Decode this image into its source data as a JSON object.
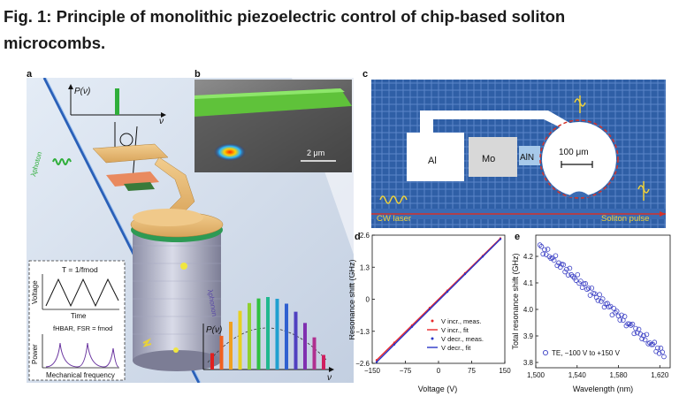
{
  "figure": {
    "title": "Fig. 1: Principle of monolithic piezoelectric control of chip-based soliton microcombs."
  },
  "panel_labels": {
    "a": "a",
    "b": "b",
    "c": "c",
    "d": "d",
    "e": "e"
  },
  "panel_a": {
    "top_plot_ylabel": "P(ν)",
    "top_plot_xlabel": "ν",
    "photon_label": "λphoton",
    "phonon_label": "λphonon",
    "comb_plot_ylabel": "P(ν)",
    "comb_plot_xlabel": "ν",
    "inset_period": "T = 1/fmod",
    "inset_voltage": "Voltage",
    "inset_time": "Time",
    "inset_fsr": "fHBAR, FSR = fmod",
    "inset_power": "Power",
    "inset_mech": "Mechanical frequency"
  },
  "panel_b": {
    "scalebar": "2 μm"
  },
  "panel_c": {
    "al": "Al",
    "mo": "Mo",
    "aln": "AlN",
    "scalebar": "100 μm",
    "cw": "CW laser",
    "soliton": "Soliton pulse"
  },
  "chart_data": [
    {
      "type": "line",
      "panel": "d",
      "xlabel": "Voltage (V)",
      "ylabel": "Resonance shift (GHz)",
      "xlim": [
        -150,
        150
      ],
      "ylim": [
        -2.6,
        2.6
      ],
      "xticks": [
        "−150",
        "−75",
        "0",
        "75",
        "150"
      ],
      "yticks": [
        "2.6",
        "1.3",
        "0",
        "−1.3",
        "−2.6"
      ],
      "legend_position": "bottom-right",
      "series": [
        {
          "name": "V incr., meas.",
          "color": "#e8282b",
          "style": "markers",
          "x": [
            -140,
            -100,
            -60,
            -20,
            20,
            60,
            100,
            140
          ],
          "y": [
            -2.47,
            -1.76,
            -1.06,
            -0.35,
            0.35,
            1.06,
            1.76,
            2.47
          ]
        },
        {
          "name": "V incr., fit",
          "color": "#e8282b",
          "style": "line",
          "x": [
            -140,
            140
          ],
          "y": [
            -2.47,
            2.47
          ]
        },
        {
          "name": "V decr., meas.",
          "color": "#2a35c8",
          "style": "markers",
          "x": [
            -140,
            -100,
            -60,
            -20,
            20,
            60,
            100,
            140
          ],
          "y": [
            -2.55,
            -1.84,
            -1.12,
            -0.4,
            0.3,
            1.02,
            1.73,
            2.44
          ]
        },
        {
          "name": "V decr., fit",
          "color": "#2a35c8",
          "style": "line",
          "x": [
            -140,
            140
          ],
          "y": [
            -2.55,
            2.44
          ]
        }
      ]
    },
    {
      "type": "scatter",
      "panel": "e",
      "xlabel": "Wavelength (nm)",
      "ylabel": "Total resonance shift (GHz)",
      "xlim": [
        1500,
        1630
      ],
      "ylim": [
        3.78,
        4.28
      ],
      "xticks": [
        "1,500",
        "1,540",
        "1,580",
        "1,620"
      ],
      "yticks": [
        "4.2",
        "4.1",
        "4.0",
        "3.9",
        "3.8"
      ],
      "legend_position": "bottom-left",
      "series": [
        {
          "name": "TE, −100 V to +150 V",
          "color": "#3a3fc4",
          "style": "open-circles",
          "x_start": 1504,
          "x_end": 1624,
          "y_start": 4.235,
          "y_end": 3.83,
          "count": 80
        }
      ]
    }
  ]
}
